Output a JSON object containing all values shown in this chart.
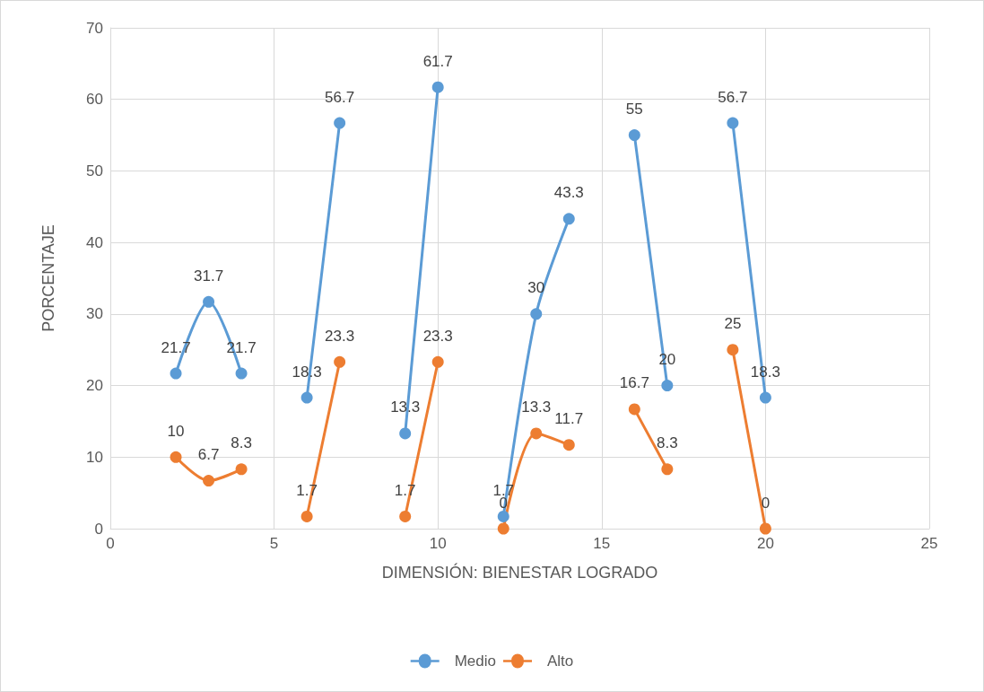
{
  "chart_data": {
    "type": "line",
    "xlabel": "DIMENSIÓN: BIENESTAR LOGRADO",
    "ylabel": "PORCENTAJE",
    "x": [
      2,
      3,
      4,
      5,
      6,
      7,
      8,
      9,
      10,
      11,
      12,
      13,
      14,
      15,
      16,
      17,
      18,
      19,
      20
    ],
    "series": [
      {
        "name": "Medio",
        "color": "#5b9bd5",
        "values": [
          21.7,
          31.7,
          21.7,
          null,
          18.3,
          56.7,
          null,
          13.3,
          61.7,
          null,
          1.7,
          30,
          43.3,
          null,
          55,
          20,
          null,
          56.7,
          18.3
        ]
      },
      {
        "name": "Alto",
        "color": "#ed7d31",
        "values": [
          10,
          6.7,
          8.3,
          null,
          1.7,
          23.3,
          null,
          1.7,
          23.3,
          null,
          0,
          13.3,
          11.7,
          null,
          16.7,
          8.3,
          null,
          25,
          0
        ]
      }
    ],
    "xlim": [
      0,
      25
    ],
    "xticks": [
      0,
      5,
      10,
      15,
      20,
      25
    ],
    "ylim": [
      0,
      70
    ],
    "yticks": [
      0,
      10,
      20,
      30,
      40,
      50,
      60,
      70
    ],
    "grid": true,
    "legend": "bottom",
    "marker": "circle",
    "line_style": "solid",
    "data_labels": true
  }
}
